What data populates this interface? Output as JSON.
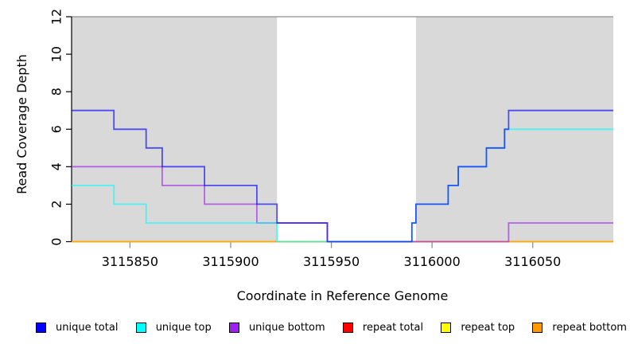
{
  "chart_data": {
    "type": "line",
    "subtype": "step-post",
    "title": "",
    "xlabel": "Coordinate in Reference Genome",
    "ylabel": "Read Coverage Depth",
    "xlim": [
      3115821,
      3116090
    ],
    "ylim": [
      0,
      12
    ],
    "xticks": [
      3115850,
      3115900,
      3115950,
      3116000,
      3116050
    ],
    "yticks": [
      0,
      2,
      4,
      6,
      8,
      10,
      12
    ],
    "grid": false,
    "legend_position": "bottom",
    "cap_line_y": 12,
    "cap_line_color": "#8f8f8f",
    "shade_color": "#d9d9d9",
    "shaded_regions": [
      {
        "x0": 3115821,
        "x1": 3115923
      },
      {
        "x0": 3115992,
        "x1": 3116090
      }
    ],
    "axis_color": "#000000",
    "x_tick_color": "#8f8f8f",
    "line_opacity": 0.65,
    "line_width": 1.8,
    "draw_order": [
      "repeat total",
      "repeat top",
      "repeat bottom",
      "unique bottom",
      "unique top",
      "unique total"
    ],
    "series": [
      {
        "name": "unique total",
        "color": "#0000ff",
        "steps": [
          [
            3115821,
            7
          ],
          [
            3115842,
            6
          ],
          [
            3115858,
            5
          ],
          [
            3115866,
            4
          ],
          [
            3115887,
            3
          ],
          [
            3115913,
            2
          ],
          [
            3115923,
            1
          ],
          [
            3115948,
            0
          ],
          [
            3115990,
            1
          ],
          [
            3115992,
            2
          ],
          [
            3116008,
            3
          ],
          [
            3116013,
            4
          ],
          [
            3116027,
            5
          ],
          [
            3116036,
            6
          ],
          [
            3116038,
            7
          ]
        ]
      },
      {
        "name": "unique top",
        "color": "#00ffff",
        "steps": [
          [
            3115821,
            3
          ],
          [
            3115842,
            2
          ],
          [
            3115858,
            1
          ],
          [
            3115923,
            0
          ],
          [
            3115990,
            1
          ],
          [
            3115992,
            2
          ],
          [
            3116008,
            3
          ],
          [
            3116013,
            4
          ],
          [
            3116027,
            5
          ],
          [
            3116036,
            6
          ]
        ]
      },
      {
        "name": "unique bottom",
        "color": "#a020f0",
        "steps": [
          [
            3115821,
            4
          ],
          [
            3115866,
            3
          ],
          [
            3115887,
            2
          ],
          [
            3115913,
            1
          ],
          [
            3115948,
            0
          ],
          [
            3116038,
            1
          ]
        ]
      },
      {
        "name": "repeat total",
        "color": "#ff0000",
        "steps": [
          [
            3115821,
            0
          ]
        ]
      },
      {
        "name": "repeat top",
        "color": "#ffff00",
        "steps": [
          [
            3115821,
            0
          ]
        ]
      },
      {
        "name": "repeat bottom",
        "color": "#ff9900",
        "steps": [
          [
            3115821,
            0
          ]
        ]
      }
    ]
  }
}
